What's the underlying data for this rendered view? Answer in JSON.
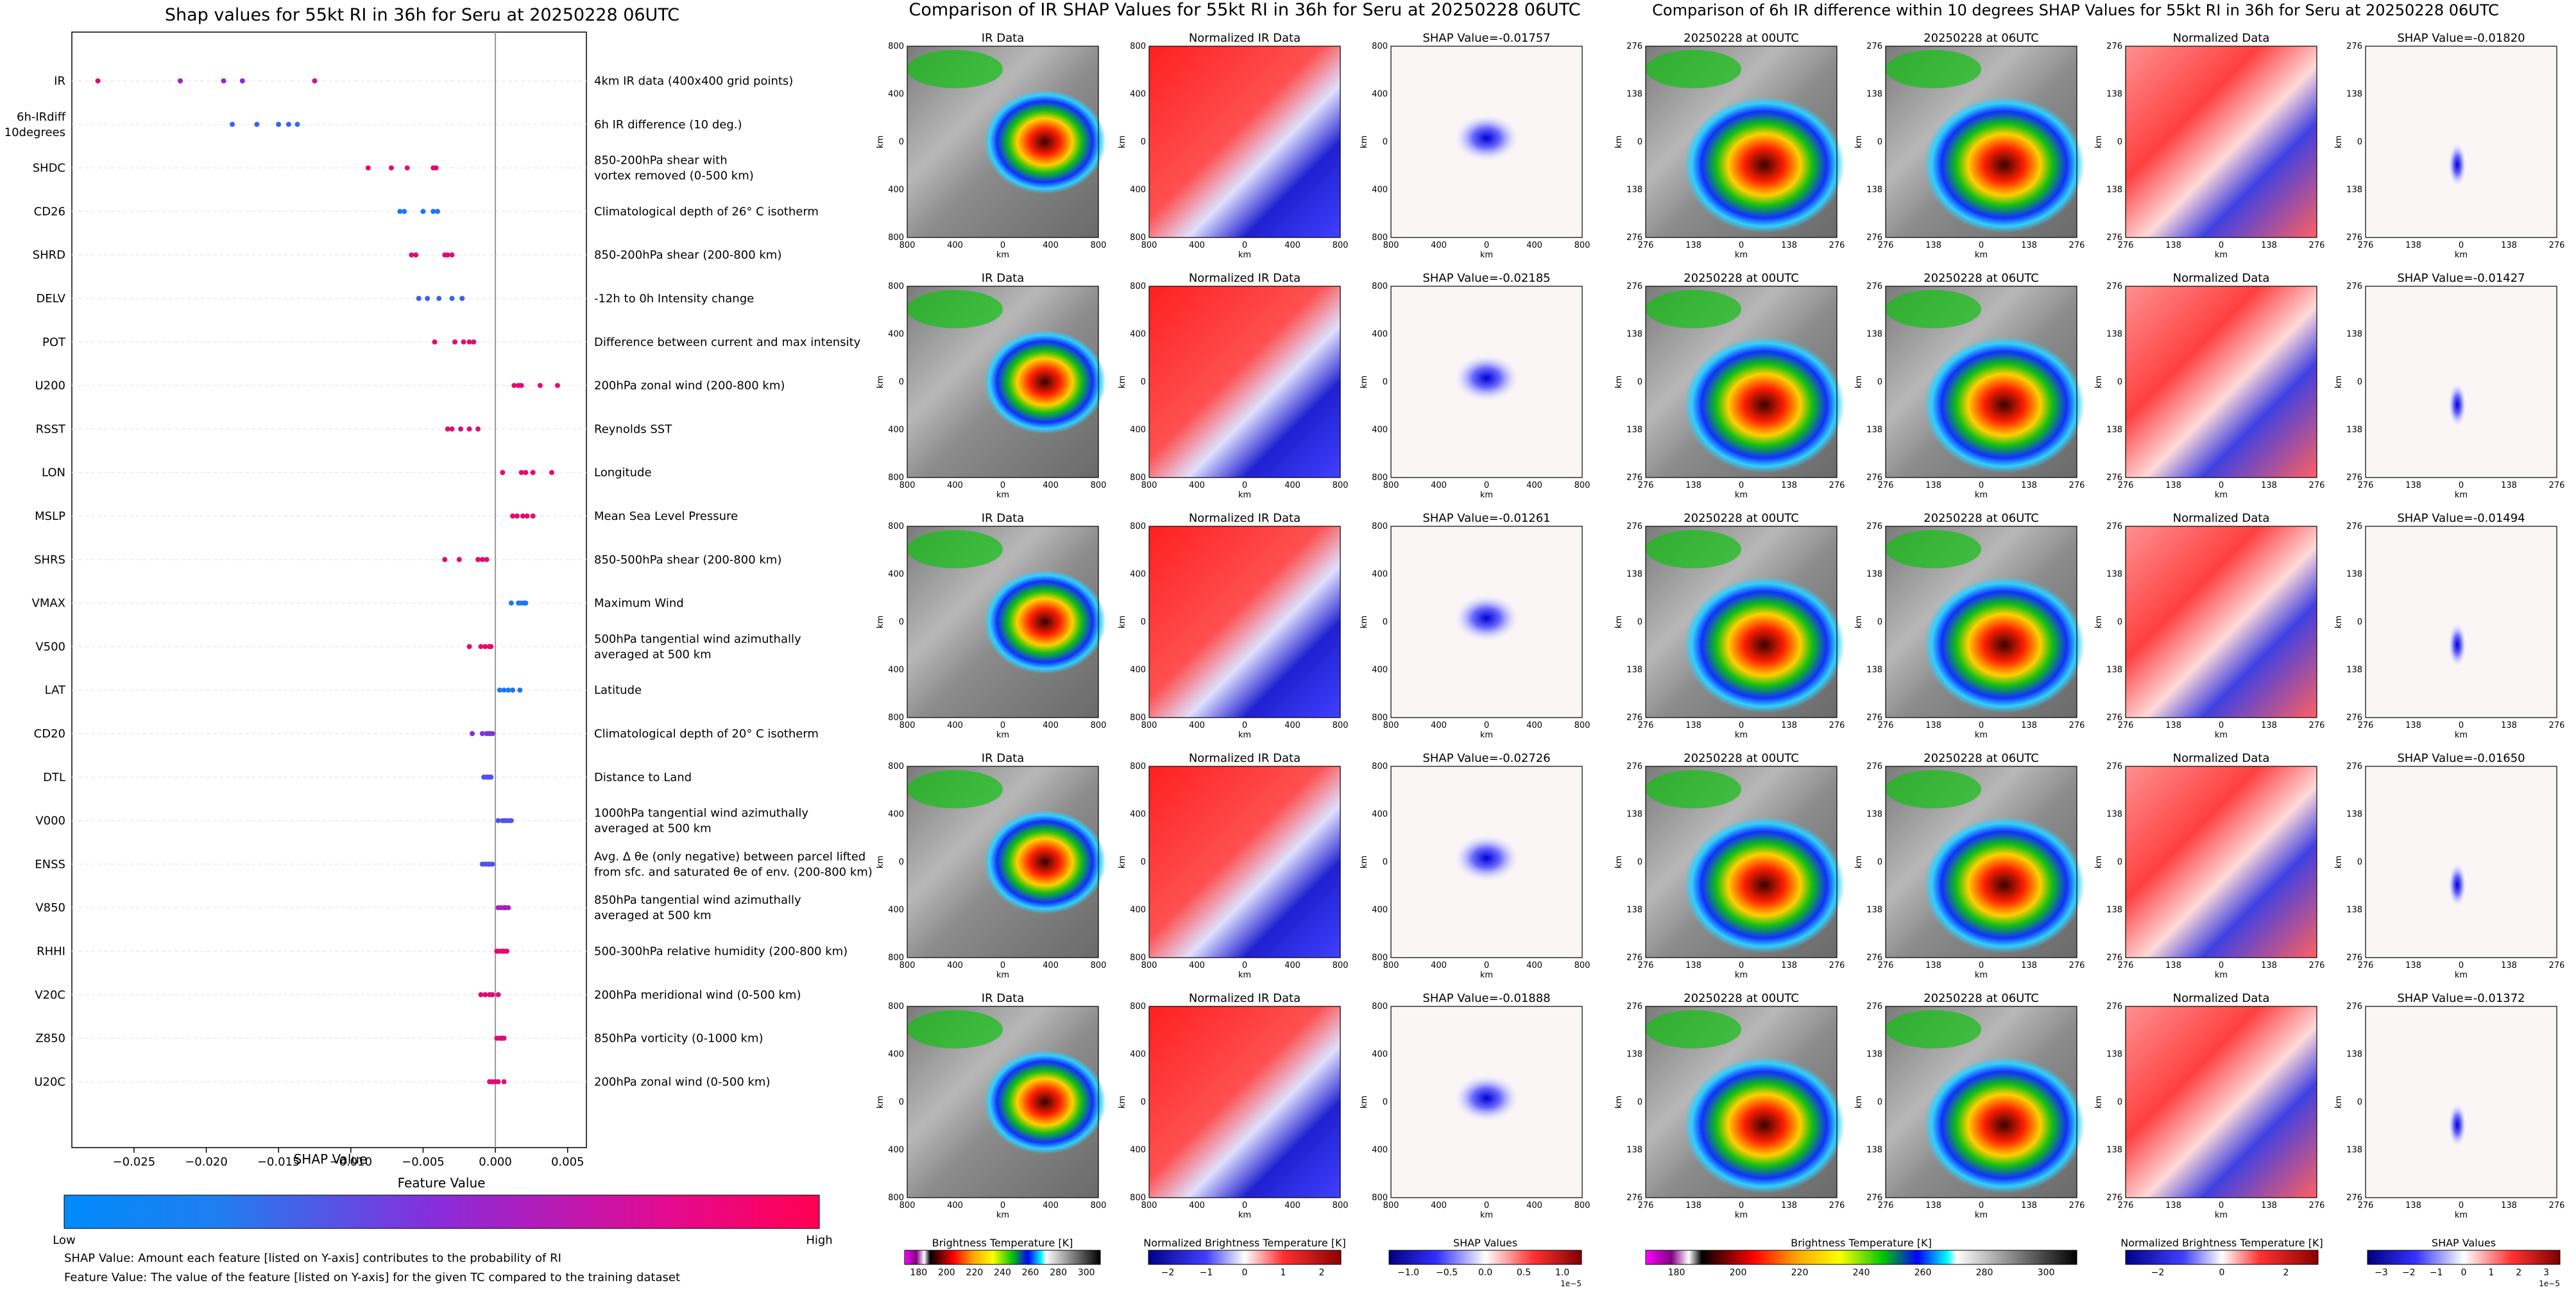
{
  "shap_panel": {
    "title": "Shap values for 55kt RI in 36h for Seru at 20250228 06UTC",
    "xlabel": "SHAP Value",
    "colorbar": {
      "title": "Feature Value",
      "low": "Low",
      "high": "High",
      "color_low": "#008afb",
      "color_mid": "#8b2bd9",
      "color_high": "#ff0052"
    },
    "footnote_1": "SHAP Value: Amount each feature [listed on Y-axis] contributes to the probability of RI",
    "footnote_2": "Feature Value: The value of the feature [listed on Y-axis] for the given TC compared to the training dataset"
  },
  "ir_section": {
    "title": "Comparison of IR SHAP Values for 55kt RI in 36h for Seru at 20250228 06UTC",
    "col_titles": [
      "IR Data",
      "Normalized IR Data"
    ],
    "shap_titles": [
      "SHAP Value=-0.01757",
      "SHAP Value=-0.02185",
      "SHAP Value=-0.01261",
      "SHAP Value=-0.02726",
      "SHAP Value=-0.01888"
    ],
    "axis_unit": "km",
    "ticks_x": [
      "800",
      "400",
      "0",
      "400",
      "800"
    ],
    "ticks_y": [
      "800",
      "400",
      "0",
      "400",
      "800"
    ],
    "cbar_labels": [
      "Brightness Temperature [K]",
      "Normalized Brightness Temperature [K]",
      "SHAP Values"
    ],
    "cbar1_ticks": [
      "180",
      "200",
      "220",
      "240",
      "260",
      "280",
      "300"
    ],
    "cbar2_ticks": [
      "−2",
      "−1",
      "0",
      "1",
      "2"
    ],
    "cbar3_ticks": [
      "−1.0",
      "−0.5",
      "0.0",
      "0.5",
      "1.0"
    ],
    "cbar3_exp": "1e−5"
  },
  "diff_section": {
    "title": "Comparison of 6h IR difference within 10 degrees SHAP Values for 55kt RI in 36h for Seru at 20250228 06UTC",
    "col_titles": [
      "20250228 at 00UTC",
      "20250228 at 06UTC",
      "Normalized Data"
    ],
    "shap_titles": [
      "SHAP Value=-0.01820",
      "SHAP Value=-0.01427",
      "SHAP Value=-0.01494",
      "SHAP Value=-0.01650",
      "SHAP Value=-0.01372"
    ],
    "axis_unit": "km",
    "ticks_x": [
      "276",
      "138",
      "0",
      "138",
      "276"
    ],
    "ticks_y": [
      "276",
      "138",
      "0",
      "138",
      "276"
    ],
    "cbar_labels": [
      "Brightness Temperature [K]",
      "Normalized Brightness Temperature [K]",
      "SHAP Values"
    ],
    "cbar1_ticks": [
      "180",
      "200",
      "220",
      "240",
      "260",
      "280",
      "300"
    ],
    "cbar2_ticks": [
      "−2",
      "0",
      "2"
    ],
    "cbar3_ticks": [
      "−3",
      "−2",
      "−1",
      "0",
      "1",
      "2",
      "3"
    ],
    "cbar3_exp": "1e−5"
  },
  "chart_data": {
    "type": "scatter",
    "title": "Shap values for 55kt RI in 36h for Seru at 20250228 06UTC",
    "xlabel": "SHAP Value",
    "xlim": [
      -0.0293,
      0.0063
    ],
    "xticks": [
      -0.025,
      -0.02,
      -0.015,
      -0.01,
      -0.005,
      0.0,
      0.005
    ],
    "xtick_labels": [
      "−0.025",
      "−0.020",
      "−0.015",
      "−0.010",
      "−0.005",
      "0.000",
      "0.005"
    ],
    "grid": false,
    "legend": "colorbar bottom",
    "features": [
      {
        "name": "IR",
        "desc": "4km IR data (400x400 grid points)",
        "points": [
          [
            -0.0275,
            0.85
          ],
          [
            -0.0218,
            0.62
          ],
          [
            -0.0188,
            0.55
          ],
          [
            -0.0175,
            0.5
          ],
          [
            -0.0125,
            0.7
          ]
        ]
      },
      {
        "name": "6h-IRdiff\n10degrees",
        "desc": "6h IR difference (10 deg.)",
        "points": [
          [
            -0.0182,
            0.2
          ],
          [
            -0.0165,
            0.18
          ],
          [
            -0.015,
            0.22
          ],
          [
            -0.0143,
            0.2
          ],
          [
            -0.0137,
            0.17
          ]
        ]
      },
      {
        "name": "SHDC",
        "desc": "850-200hPa shear with\nvortex removed (0-500 km)",
        "points": [
          [
            -0.0088,
            0.88
          ],
          [
            -0.0072,
            0.88
          ],
          [
            -0.0061,
            0.88
          ],
          [
            -0.0043,
            0.9
          ],
          [
            -0.0041,
            0.85
          ]
        ]
      },
      {
        "name": "CD26",
        "desc": "Climatological depth of 26° C isotherm",
        "points": [
          [
            -0.0066,
            0.08
          ],
          [
            -0.0063,
            0.12
          ],
          [
            -0.005,
            0.12
          ],
          [
            -0.0043,
            0.12
          ],
          [
            -0.004,
            0.15
          ]
        ]
      },
      {
        "name": "SHRD",
        "desc": "850-200hPa shear (200-800 km)",
        "points": [
          [
            -0.0058,
            0.88
          ],
          [
            -0.0055,
            0.88
          ],
          [
            -0.0035,
            0.88
          ],
          [
            -0.003,
            0.9
          ],
          [
            -0.0033,
            0.85
          ]
        ]
      },
      {
        "name": "DELV",
        "desc": "-12h to 0h Intensity change",
        "points": [
          [
            -0.0053,
            0.25
          ],
          [
            -0.0047,
            0.2
          ],
          [
            -0.0039,
            0.2
          ],
          [
            -0.003,
            0.2
          ],
          [
            -0.0023,
            0.22
          ]
        ]
      },
      {
        "name": "POT",
        "desc": "Difference between current and max intensity",
        "points": [
          [
            -0.0042,
            0.9
          ],
          [
            -0.0028,
            0.9
          ],
          [
            -0.0022,
            0.9
          ],
          [
            -0.0018,
            0.9
          ],
          [
            -0.0015,
            0.85
          ]
        ]
      },
      {
        "name": "U200",
        "desc": "200hPa zonal wind (200-800 km)",
        "points": [
          [
            0.0013,
            0.9
          ],
          [
            0.0016,
            0.9
          ],
          [
            0.0018,
            0.9
          ],
          [
            0.0031,
            0.9
          ],
          [
            0.0043,
            0.9
          ]
        ]
      },
      {
        "name": "RSST",
        "desc": "Reynolds SST",
        "points": [
          [
            -0.0033,
            0.85
          ],
          [
            -0.003,
            0.85
          ],
          [
            -0.0024,
            0.85
          ],
          [
            -0.0018,
            0.85
          ],
          [
            -0.0012,
            0.82
          ]
        ]
      },
      {
        "name": "LON",
        "desc": "Longitude",
        "points": [
          [
            0.0005,
            0.9
          ],
          [
            0.0018,
            0.9
          ],
          [
            0.0021,
            0.9
          ],
          [
            0.0026,
            0.9
          ],
          [
            0.0039,
            0.9
          ]
        ]
      },
      {
        "name": "MSLP",
        "desc": "Mean Sea Level Pressure",
        "points": [
          [
            0.0012,
            0.9
          ],
          [
            0.0015,
            0.9
          ],
          [
            0.0019,
            0.9
          ],
          [
            0.0022,
            0.9
          ],
          [
            0.0026,
            0.9
          ]
        ]
      },
      {
        "name": "SHRS",
        "desc": "850-500hPa shear (200-800 km)",
        "points": [
          [
            -0.0035,
            0.88
          ],
          [
            -0.0025,
            0.88
          ],
          [
            -0.0012,
            0.9
          ],
          [
            -0.0009,
            0.88
          ],
          [
            -0.0006,
            0.88
          ]
        ]
      },
      {
        "name": "VMAX",
        "desc": "Maximum Wind",
        "points": [
          [
            0.0011,
            0.1
          ],
          [
            0.0016,
            0.1
          ],
          [
            0.0018,
            0.1
          ],
          [
            0.002,
            0.1
          ],
          [
            0.0021,
            0.12
          ]
        ]
      },
      {
        "name": "V500",
        "desc": "500hPa tangential wind azimuthally\naveraged at 500 km",
        "points": [
          [
            -0.0018,
            0.9
          ],
          [
            -0.001,
            0.9
          ],
          [
            -0.0007,
            0.9
          ],
          [
            -0.0004,
            0.88
          ],
          [
            -0.0003,
            0.88
          ]
        ]
      },
      {
        "name": "LAT",
        "desc": "Latitude",
        "points": [
          [
            0.0003,
            0.1
          ],
          [
            0.0006,
            0.1
          ],
          [
            0.0009,
            0.1
          ],
          [
            0.0012,
            0.12
          ],
          [
            0.0017,
            0.12
          ]
        ]
      },
      {
        "name": "CD20",
        "desc": "Climatological depth of 20° C isotherm",
        "points": [
          [
            -0.0016,
            0.5
          ],
          [
            -0.0009,
            0.45
          ],
          [
            -0.0006,
            0.45
          ],
          [
            -0.0004,
            0.5
          ],
          [
            -0.0002,
            0.48
          ]
        ]
      },
      {
        "name": "DTL",
        "desc": "Distance to Land",
        "points": [
          [
            -0.0008,
            0.3
          ],
          [
            -0.0006,
            0.3
          ],
          [
            -0.0005,
            0.3
          ],
          [
            -0.0004,
            0.3
          ],
          [
            -0.0003,
            0.3
          ]
        ]
      },
      {
        "name": "V000",
        "desc": "1000hPa tangential wind azimuthally\naveraged at 500 km",
        "points": [
          [
            0.0002,
            0.3
          ],
          [
            0.0005,
            0.3
          ],
          [
            0.0007,
            0.3
          ],
          [
            0.0009,
            0.3
          ],
          [
            0.0011,
            0.3
          ]
        ]
      },
      {
        "name": "ENSS",
        "desc": "Avg. Δ θe (only negative) between parcel lifted\nfrom sfc. and saturated θe of env. (200-800 km)",
        "points": [
          [
            -0.0009,
            0.3
          ],
          [
            -0.0007,
            0.3
          ],
          [
            -0.0005,
            0.3
          ],
          [
            -0.0004,
            0.3
          ],
          [
            -0.0002,
            0.3
          ]
        ]
      },
      {
        "name": "V850",
        "desc": "850hPa tangential wind azimuthally\naveraged at 500 km",
        "points": [
          [
            0.0002,
            0.6
          ],
          [
            0.0004,
            0.6
          ],
          [
            0.0006,
            0.6
          ],
          [
            0.0007,
            0.6
          ],
          [
            0.0009,
            0.65
          ]
        ]
      },
      {
        "name": "RHHI",
        "desc": "500-300hPa relative humidity (200-800 km)",
        "points": [
          [
            0.0001,
            0.9
          ],
          [
            0.0003,
            0.9
          ],
          [
            0.0005,
            0.9
          ],
          [
            0.0006,
            0.9
          ],
          [
            0.0008,
            0.9
          ]
        ]
      },
      {
        "name": "V20C",
        "desc": "200hPa meridional wind (0-500 km)",
        "points": [
          [
            -0.001,
            0.88
          ],
          [
            -0.0007,
            0.88
          ],
          [
            -0.0004,
            0.88
          ],
          [
            -0.0002,
            0.85
          ],
          [
            0.0002,
            0.85
          ]
        ]
      },
      {
        "name": "Z850",
        "desc": "850hPa vorticity (0-1000 km)",
        "points": [
          [
            0.0001,
            0.85
          ],
          [
            0.0003,
            0.85
          ],
          [
            0.0004,
            0.85
          ],
          [
            0.0005,
            0.85
          ],
          [
            0.0006,
            0.85
          ]
        ]
      },
      {
        "name": "U20C",
        "desc": "200hPa zonal wind (0-500 km)",
        "points": [
          [
            -0.0004,
            0.9
          ],
          [
            -0.0002,
            0.9
          ],
          [
            0.0,
            0.9
          ],
          [
            0.0002,
            0.9
          ],
          [
            0.0006,
            0.85
          ]
        ]
      }
    ]
  }
}
